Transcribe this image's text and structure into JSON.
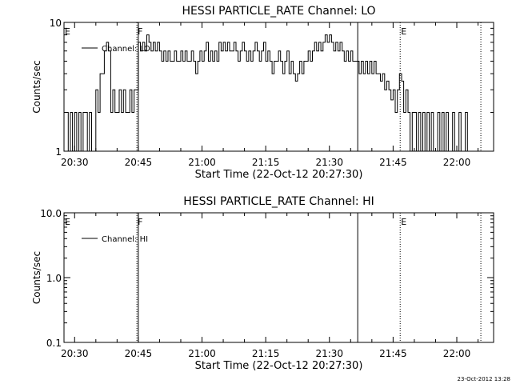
{
  "footer": {
    "timestamp": "23-Oct-2012 13:28"
  },
  "chart_data": [
    {
      "type": "line",
      "title": "HESSI PARTICLE_RATE Channel: LO",
      "xlabel": "Start Time (22-Oct-12 20:27:30)",
      "ylabel": "Counts/sec",
      "x_unit": "minutes",
      "xlim": [
        "20:27:30",
        "22:08:40"
      ],
      "x_ticks": [
        "20:30",
        "20:45",
        "21:00",
        "21:15",
        "21:30",
        "21:45",
        "22:00"
      ],
      "y_scale": "log",
      "ylim": [
        1,
        10
      ],
      "y_ticks": [
        "1",
        "10"
      ],
      "legend": {
        "label": "Channel: LO",
        "placement": "top-left"
      },
      "markers": [
        {
          "label": "E",
          "time": "20:27:30",
          "style": "dotted"
        },
        {
          "label": "F",
          "time": "20:44:40",
          "style": "dotted"
        },
        {
          "label": "",
          "time": "20:45:00",
          "style": "solid"
        },
        {
          "label": "",
          "time": "21:36:40",
          "style": "solid"
        },
        {
          "label": "E",
          "time": "21:46:40",
          "style": "dotted"
        },
        {
          "label": "",
          "time": "22:05:40",
          "style": "dotted"
        }
      ],
      "series": [
        {
          "name": "Channel: LO",
          "points": [
            [
              "20:28:00",
              2
            ],
            [
              "20:28:30",
              1
            ],
            [
              "20:29:00",
              2
            ],
            [
              "20:29:30",
              1
            ],
            [
              "20:30:00",
              2
            ],
            [
              "20:30:30",
              1
            ],
            [
              "20:31:00",
              2
            ],
            [
              "20:31:30",
              1
            ],
            [
              "20:32:00",
              2
            ],
            [
              "20:32:30",
              2
            ],
            [
              "20:33:00",
              1
            ],
            [
              "20:33:30",
              2
            ],
            [
              "20:34:00",
              1
            ],
            [
              "20:34:30",
              1
            ],
            [
              "20:35:00",
              3
            ],
            [
              "20:35:30",
              2
            ],
            [
              "20:36:00",
              4
            ],
            [
              "20:36:30",
              4
            ],
            [
              "20:37:00",
              6
            ],
            [
              "20:37:30",
              7
            ],
            [
              "20:38:00",
              6
            ],
            [
              "20:38:30",
              2
            ],
            [
              "20:39:00",
              3
            ],
            [
              "20:39:30",
              2
            ],
            [
              "20:40:00",
              2
            ],
            [
              "20:40:30",
              3
            ],
            [
              "20:41:00",
              2
            ],
            [
              "20:41:30",
              3
            ],
            [
              "20:42:00",
              2
            ],
            [
              "20:42:30",
              2
            ],
            [
              "20:43:00",
              3
            ],
            [
              "20:43:30",
              2
            ],
            [
              "20:44:00",
              3
            ],
            [
              "20:44:30",
              3
            ],
            [
              "20:45:00",
              7
            ],
            [
              "20:45:30",
              6
            ],
            [
              "20:46:00",
              7
            ],
            [
              "20:46:30",
              6
            ],
            [
              "20:47:00",
              8
            ],
            [
              "20:47:30",
              7
            ],
            [
              "20:48:00",
              6
            ],
            [
              "20:48:30",
              7
            ],
            [
              "20:49:00",
              6
            ],
            [
              "20:49:30",
              7
            ],
            [
              "20:50:00",
              6
            ],
            [
              "20:50:30",
              5
            ],
            [
              "20:51:00",
              6
            ],
            [
              "20:51:30",
              5
            ],
            [
              "20:52:00",
              6
            ],
            [
              "20:52:30",
              5
            ],
            [
              "20:53:00",
              5
            ],
            [
              "20:53:30",
              6
            ],
            [
              "20:54:00",
              5
            ],
            [
              "20:54:30",
              5
            ],
            [
              "20:55:00",
              6
            ],
            [
              "20:55:30",
              5
            ],
            [
              "20:56:00",
              6
            ],
            [
              "20:56:30",
              5
            ],
            [
              "20:57:00",
              5
            ],
            [
              "20:57:30",
              6
            ],
            [
              "20:58:00",
              5
            ],
            [
              "20:58:30",
              4
            ],
            [
              "20:59:00",
              5
            ],
            [
              "20:59:30",
              6
            ],
            [
              "21:00:00",
              5
            ],
            [
              "21:00:30",
              6
            ],
            [
              "21:01:00",
              7
            ],
            [
              "21:01:30",
              5
            ],
            [
              "21:02:00",
              6
            ],
            [
              "21:02:30",
              5
            ],
            [
              "21:03:00",
              6
            ],
            [
              "21:03:30",
              5
            ],
            [
              "21:04:00",
              7
            ],
            [
              "21:04:30",
              6
            ],
            [
              "21:05:00",
              7
            ],
            [
              "21:05:30",
              6
            ],
            [
              "21:06:00",
              7
            ],
            [
              "21:06:30",
              6
            ],
            [
              "21:07:00",
              6
            ],
            [
              "21:07:30",
              7
            ],
            [
              "21:08:00",
              6
            ],
            [
              "21:08:30",
              5
            ],
            [
              "21:09:00",
              6
            ],
            [
              "21:09:30",
              7
            ],
            [
              "21:10:00",
              6
            ],
            [
              "21:10:30",
              5
            ],
            [
              "21:11:00",
              6
            ],
            [
              "21:11:30",
              5
            ],
            [
              "21:12:00",
              6
            ],
            [
              "21:12:30",
              7
            ],
            [
              "21:13:00",
              6
            ],
            [
              "21:13:30",
              5
            ],
            [
              "21:14:00",
              6
            ],
            [
              "21:14:30",
              7
            ],
            [
              "21:15:00",
              5
            ],
            [
              "21:15:30",
              6
            ],
            [
              "21:16:00",
              5
            ],
            [
              "21:16:30",
              4
            ],
            [
              "21:17:00",
              5
            ],
            [
              "21:17:30",
              5
            ],
            [
              "21:18:00",
              6
            ],
            [
              "21:18:30",
              5
            ],
            [
              "21:19:00",
              4
            ],
            [
              "21:19:30",
              5
            ],
            [
              "21:20:00",
              6
            ],
            [
              "21:20:30",
              4
            ],
            [
              "21:21:00",
              5
            ],
            [
              "21:21:30",
              4
            ],
            [
              "21:22:00",
              3.5
            ],
            [
              "21:22:30",
              4
            ],
            [
              "21:23:00",
              5
            ],
            [
              "21:23:30",
              4
            ],
            [
              "21:24:00",
              5
            ],
            [
              "21:24:30",
              5
            ],
            [
              "21:25:00",
              6
            ],
            [
              "21:25:30",
              5
            ],
            [
              "21:26:00",
              6
            ],
            [
              "21:26:30",
              7
            ],
            [
              "21:27:00",
              6
            ],
            [
              "21:27:30",
              7
            ],
            [
              "21:28:00",
              6
            ],
            [
              "21:28:30",
              7
            ],
            [
              "21:29:00",
              8
            ],
            [
              "21:29:30",
              7
            ],
            [
              "21:30:00",
              8
            ],
            [
              "21:30:30",
              7
            ],
            [
              "21:31:00",
              6
            ],
            [
              "21:31:30",
              7
            ],
            [
              "21:32:00",
              6
            ],
            [
              "21:32:30",
              7
            ],
            [
              "21:33:00",
              6
            ],
            [
              "21:33:30",
              5
            ],
            [
              "21:34:00",
              6
            ],
            [
              "21:34:30",
              5
            ],
            [
              "21:35:00",
              6
            ],
            [
              "21:35:30",
              5
            ],
            [
              "21:36:00",
              5
            ],
            [
              "21:36:30",
              5
            ],
            [
              "21:37:00",
              4
            ],
            [
              "21:37:30",
              5
            ],
            [
              "21:38:00",
              4
            ],
            [
              "21:38:30",
              5
            ],
            [
              "21:39:00",
              4
            ],
            [
              "21:39:30",
              5
            ],
            [
              "21:40:00",
              4
            ],
            [
              "21:40:30",
              5
            ],
            [
              "21:41:00",
              4
            ],
            [
              "21:41:30",
              4
            ],
            [
              "21:42:00",
              3.5
            ],
            [
              "21:42:30",
              4
            ],
            [
              "21:43:00",
              3
            ],
            [
              "21:43:30",
              3.5
            ],
            [
              "21:44:00",
              3
            ],
            [
              "21:44:30",
              2.5
            ],
            [
              "21:45:00",
              3
            ],
            [
              "21:45:30",
              2
            ],
            [
              "21:46:00",
              3
            ],
            [
              "21:46:30",
              4
            ],
            [
              "21:47:00",
              3.5
            ],
            [
              "21:47:30",
              2
            ],
            [
              "21:48:00",
              3
            ],
            [
              "21:48:30",
              2
            ],
            [
              "21:49:00",
              1
            ],
            [
              "21:49:30",
              2
            ],
            [
              "21:50:00",
              2
            ],
            [
              "21:50:30",
              1
            ],
            [
              "21:51:00",
              2
            ],
            [
              "21:51:30",
              1
            ],
            [
              "21:52:00",
              2
            ],
            [
              "21:52:30",
              1
            ],
            [
              "21:53:00",
              2
            ],
            [
              "21:53:30",
              1
            ],
            [
              "21:54:00",
              2
            ],
            [
              "21:54:30",
              1
            ],
            [
              "21:55:00",
              1
            ],
            [
              "21:55:30",
              2
            ],
            [
              "21:56:00",
              1
            ],
            [
              "21:56:30",
              2
            ],
            [
              "21:57:00",
              1
            ],
            [
              "21:57:30",
              2
            ],
            [
              "21:58:00",
              1
            ],
            [
              "21:58:30",
              1
            ],
            [
              "21:59:00",
              2
            ],
            [
              "21:59:30",
              1
            ],
            [
              "22:00:00",
              1
            ],
            [
              "22:00:30",
              2
            ],
            [
              "22:01:00",
              1
            ],
            [
              "22:01:30",
              1
            ],
            [
              "22:02:00",
              2
            ],
            [
              "22:02:30",
              1
            ],
            [
              "22:03:00",
              1
            ],
            [
              "22:03:30",
              1
            ],
            [
              "22:04:00",
              1
            ],
            [
              "22:05:00",
              1
            ]
          ]
        }
      ]
    },
    {
      "type": "line",
      "title": "HESSI PARTICLE_RATE Channel: HI",
      "xlabel": "Start Time (22-Oct-12 20:27:30)",
      "ylabel": "Counts/sec",
      "x_unit": "minutes",
      "xlim": [
        "20:27:30",
        "22:08:40"
      ],
      "x_ticks": [
        "20:30",
        "20:45",
        "21:00",
        "21:15",
        "21:30",
        "21:45",
        "22:00"
      ],
      "y_scale": "log",
      "ylim": [
        0.1,
        10
      ],
      "y_ticks": [
        "0.1",
        "1.0",
        "10.0"
      ],
      "legend": {
        "label": "Channel: HI",
        "placement": "top-left"
      },
      "markers": [
        {
          "label": "E",
          "time": "20:27:30",
          "style": "dotted"
        },
        {
          "label": "F",
          "time": "20:44:40",
          "style": "dotted"
        },
        {
          "label": "",
          "time": "20:45:00",
          "style": "solid"
        },
        {
          "label": "",
          "time": "21:36:40",
          "style": "solid"
        },
        {
          "label": "E",
          "time": "21:46:40",
          "style": "dotted"
        },
        {
          "label": "",
          "time": "22:05:40",
          "style": "dotted"
        }
      ],
      "series": []
    }
  ]
}
